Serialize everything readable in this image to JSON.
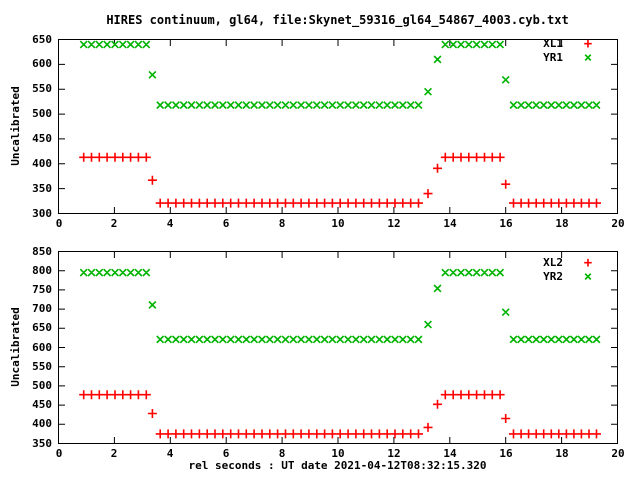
{
  "title": "HIRES continuum, gl64, file:Skynet_59316_gl64_54867_4003.cyb.txt",
  "x_axis_label": "rel seconds : UT date 2021-04-12T08:32:15.320",
  "colors": {
    "xl_series": "#ff0000",
    "yr_series": "#00b400",
    "axis": "#000000",
    "background": "#ffffff"
  },
  "chart_data": [
    {
      "type": "scatter",
      "panel": "top",
      "ylabel": "Uncalibrated",
      "xlabel": "",
      "xlim": [
        0,
        20
      ],
      "ylim": [
        300,
        650
      ],
      "x_ticks": [
        0,
        2,
        4,
        6,
        8,
        10,
        12,
        14,
        16,
        18,
        20
      ],
      "y_ticks": [
        300,
        350,
        400,
        450,
        500,
        550,
        600,
        650
      ],
      "grid": false,
      "legend_position": "top-right-inside",
      "x": [
        0.9,
        1.18,
        1.46,
        1.74,
        2.02,
        2.3,
        2.58,
        2.86,
        3.14,
        3.36,
        3.64,
        3.92,
        4.2,
        4.48,
        4.76,
        5.04,
        5.32,
        5.6,
        5.88,
        6.16,
        6.44,
        6.72,
        7.0,
        7.28,
        7.56,
        7.84,
        8.12,
        8.4,
        8.68,
        8.96,
        9.24,
        9.52,
        9.8,
        10.08,
        10.36,
        10.64,
        10.92,
        11.2,
        11.48,
        11.76,
        12.04,
        12.32,
        12.6,
        12.88,
        13.22,
        13.56,
        13.84,
        14.12,
        14.4,
        14.68,
        14.96,
        15.24,
        15.52,
        15.8,
        16.0,
        16.28,
        16.55,
        16.82,
        17.09,
        17.36,
        17.63,
        17.9,
        18.17,
        18.44,
        18.71,
        18.98,
        19.25
      ],
      "series": [
        {
          "name": "XL1",
          "marker": "plus",
          "marker_glyph": "+",
          "color": "#ff0000",
          "values": [
            413,
            413,
            413,
            413,
            413,
            413,
            413,
            413,
            413,
            367,
            321,
            321,
            321,
            321,
            321,
            321,
            321,
            321,
            321,
            321,
            321,
            321,
            321,
            321,
            321,
            321,
            321,
            321,
            321,
            321,
            321,
            321,
            321,
            321,
            321,
            321,
            321,
            321,
            321,
            321,
            321,
            321,
            321,
            321,
            340,
            391,
            413,
            413,
            413,
            413,
            413,
            413,
            413,
            413,
            359,
            321,
            321,
            321,
            321,
            321,
            321,
            321,
            321,
            321,
            321,
            321,
            321
          ]
        },
        {
          "name": "YR1",
          "marker": "cross",
          "marker_glyph": "×",
          "color": "#00b400",
          "values": [
            640,
            640,
            640,
            640,
            640,
            640,
            640,
            640,
            640,
            579,
            518,
            518,
            518,
            518,
            518,
            518,
            518,
            518,
            518,
            518,
            518,
            518,
            518,
            518,
            518,
            518,
            518,
            518,
            518,
            518,
            518,
            518,
            518,
            518,
            518,
            518,
            518,
            518,
            518,
            518,
            518,
            518,
            518,
            518,
            545,
            610,
            640,
            640,
            640,
            640,
            640,
            640,
            640,
            640,
            569,
            518,
            518,
            518,
            518,
            518,
            518,
            518,
            518,
            518,
            518,
            518,
            518
          ]
        }
      ]
    },
    {
      "type": "scatter",
      "panel": "bottom",
      "ylabel": "Uncalibrated",
      "xlabel": "rel seconds : UT date 2021-04-12T08:32:15.320",
      "xlim": [
        0,
        20
      ],
      "ylim": [
        350,
        850
      ],
      "x_ticks": [
        0,
        2,
        4,
        6,
        8,
        10,
        12,
        14,
        16,
        18,
        20
      ],
      "y_ticks": [
        350,
        400,
        450,
        500,
        550,
        600,
        650,
        700,
        750,
        800,
        850
      ],
      "grid": false,
      "legend_position": "top-right-inside",
      "x": [
        0.9,
        1.18,
        1.46,
        1.74,
        2.02,
        2.3,
        2.58,
        2.86,
        3.14,
        3.36,
        3.64,
        3.92,
        4.2,
        4.48,
        4.76,
        5.04,
        5.32,
        5.6,
        5.88,
        6.16,
        6.44,
        6.72,
        7.0,
        7.28,
        7.56,
        7.84,
        8.12,
        8.4,
        8.68,
        8.96,
        9.24,
        9.52,
        9.8,
        10.08,
        10.36,
        10.64,
        10.92,
        11.2,
        11.48,
        11.76,
        12.04,
        12.32,
        12.6,
        12.88,
        13.22,
        13.56,
        13.84,
        14.12,
        14.4,
        14.68,
        14.96,
        15.24,
        15.52,
        15.8,
        16.0,
        16.28,
        16.55,
        16.82,
        17.09,
        17.36,
        17.63,
        17.9,
        18.17,
        18.44,
        18.71,
        18.98,
        19.25
      ],
      "series": [
        {
          "name": "XL2",
          "marker": "plus",
          "marker_glyph": "+",
          "color": "#ff0000",
          "values": [
            477,
            477,
            477,
            477,
            477,
            477,
            477,
            477,
            477,
            428,
            375,
            375,
            375,
            375,
            375,
            375,
            375,
            375,
            375,
            375,
            375,
            375,
            375,
            375,
            375,
            375,
            375,
            375,
            375,
            375,
            375,
            375,
            375,
            375,
            375,
            375,
            375,
            375,
            375,
            375,
            375,
            375,
            375,
            375,
            392,
            452,
            477,
            477,
            477,
            477,
            477,
            477,
            477,
            477,
            415,
            375,
            375,
            375,
            375,
            375,
            375,
            375,
            375,
            375,
            375,
            375,
            375
          ]
        },
        {
          "name": "YR2",
          "marker": "cross",
          "marker_glyph": "×",
          "color": "#00b400",
          "values": [
            795,
            795,
            795,
            795,
            795,
            795,
            795,
            795,
            795,
            711,
            621,
            621,
            621,
            621,
            621,
            621,
            621,
            621,
            621,
            621,
            621,
            621,
            621,
            621,
            621,
            621,
            621,
            621,
            621,
            621,
            621,
            621,
            621,
            621,
            621,
            621,
            621,
            621,
            621,
            621,
            621,
            621,
            621,
            621,
            660,
            754,
            795,
            795,
            795,
            795,
            795,
            795,
            795,
            795,
            692,
            621,
            621,
            621,
            621,
            621,
            621,
            621,
            621,
            621,
            621,
            621,
            621
          ]
        }
      ]
    }
  ]
}
